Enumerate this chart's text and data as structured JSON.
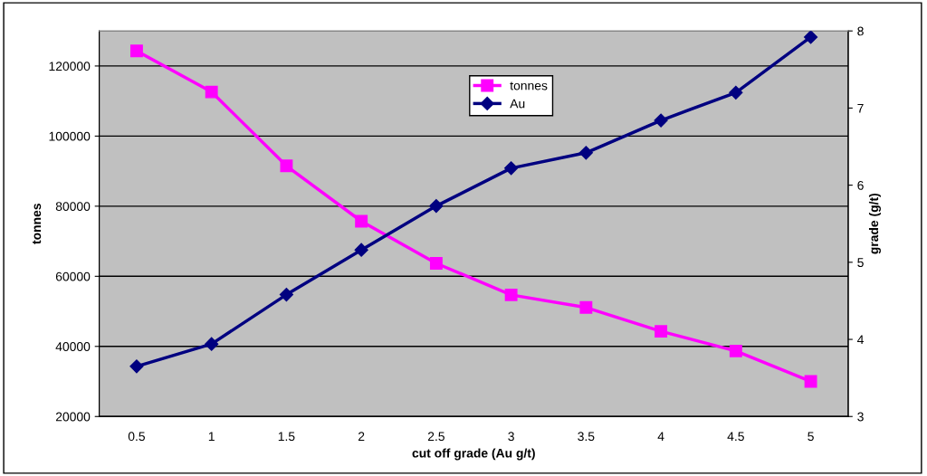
{
  "chart_data": {
    "type": "line",
    "xlabel": "cut off grade (Au g/t)",
    "ylabel": "tonnes",
    "y2label": "grade (g/t)",
    "categories": [
      "0.5",
      "1",
      "1.5",
      "2",
      "2.5",
      "3",
      "3.5",
      "4",
      "4.5",
      "5"
    ],
    "series": [
      {
        "name": "tonnes",
        "color": "#ff00ff",
        "marker": "square",
        "values": [
          124300,
          112600,
          91500,
          75700,
          63700,
          54700,
          51100,
          44300,
          38700,
          30000
        ]
      },
      {
        "name": "Au",
        "color": "#000080",
        "marker": "diamond",
        "axis": "y2",
        "values": [
          3.65,
          3.94,
          4.58,
          5.16,
          5.73,
          6.22,
          6.42,
          6.84,
          7.2,
          7.92
        ]
      }
    ],
    "ylim": [
      20000,
      130000
    ],
    "yticks": [
      20000,
      40000,
      60000,
      80000,
      100000,
      120000
    ],
    "y2lim": [
      3,
      8
    ],
    "y2ticks": [
      3,
      4,
      5,
      6,
      7,
      8
    ],
    "grid": true,
    "legend": "top"
  }
}
